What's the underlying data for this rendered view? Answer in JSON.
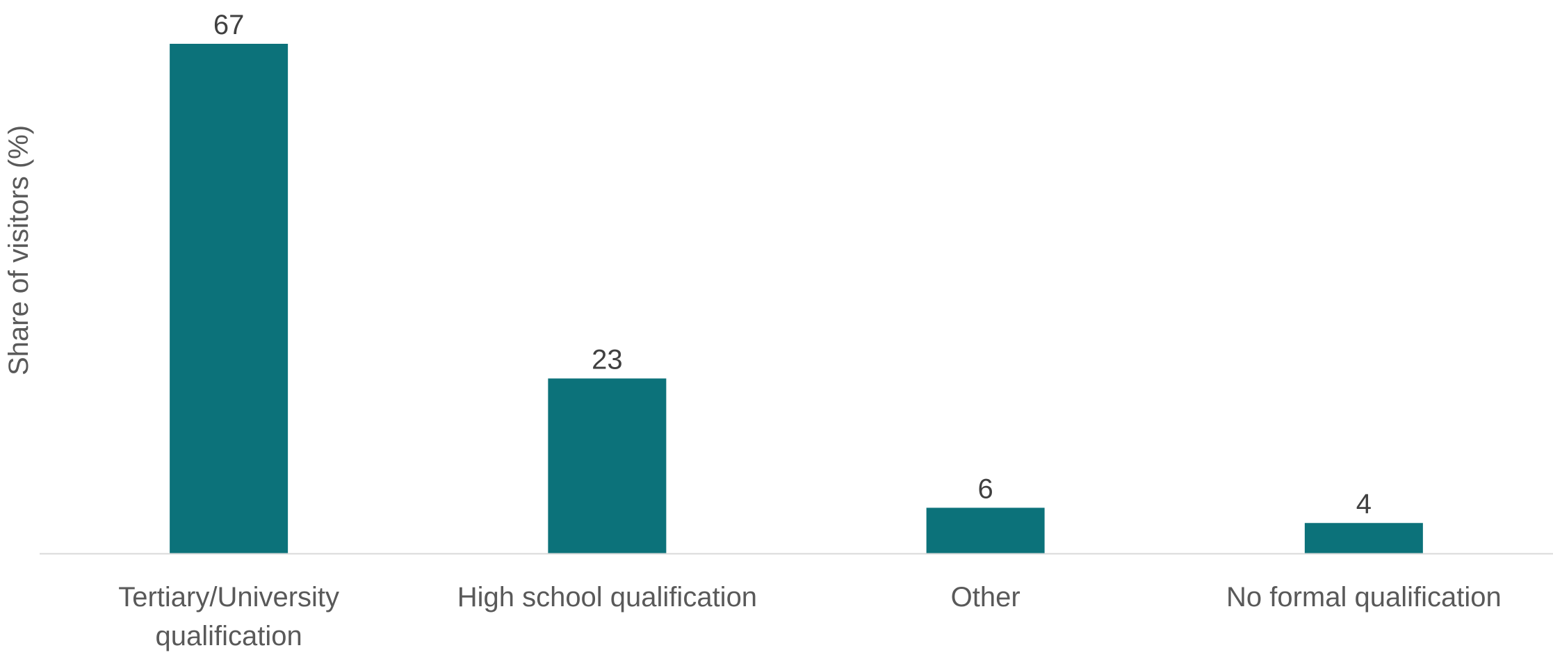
{
  "chart_data": {
    "type": "bar",
    "title": "",
    "xlabel": "",
    "ylabel": "Share of visitors (%)",
    "categories": [
      [
        "Tertiary/University",
        "qualification"
      ],
      [
        "High school qualification"
      ],
      [
        "Other"
      ],
      [
        "No formal qualification"
      ]
    ],
    "values": [
      67,
      23,
      6,
      4
    ],
    "ylim": [
      0,
      67
    ],
    "grid": false,
    "legend": "none",
    "colors": {
      "bar": "#0c727a",
      "axis_line": "#d9d9d9",
      "label_text": "#595959",
      "value_text": "#404040"
    }
  }
}
